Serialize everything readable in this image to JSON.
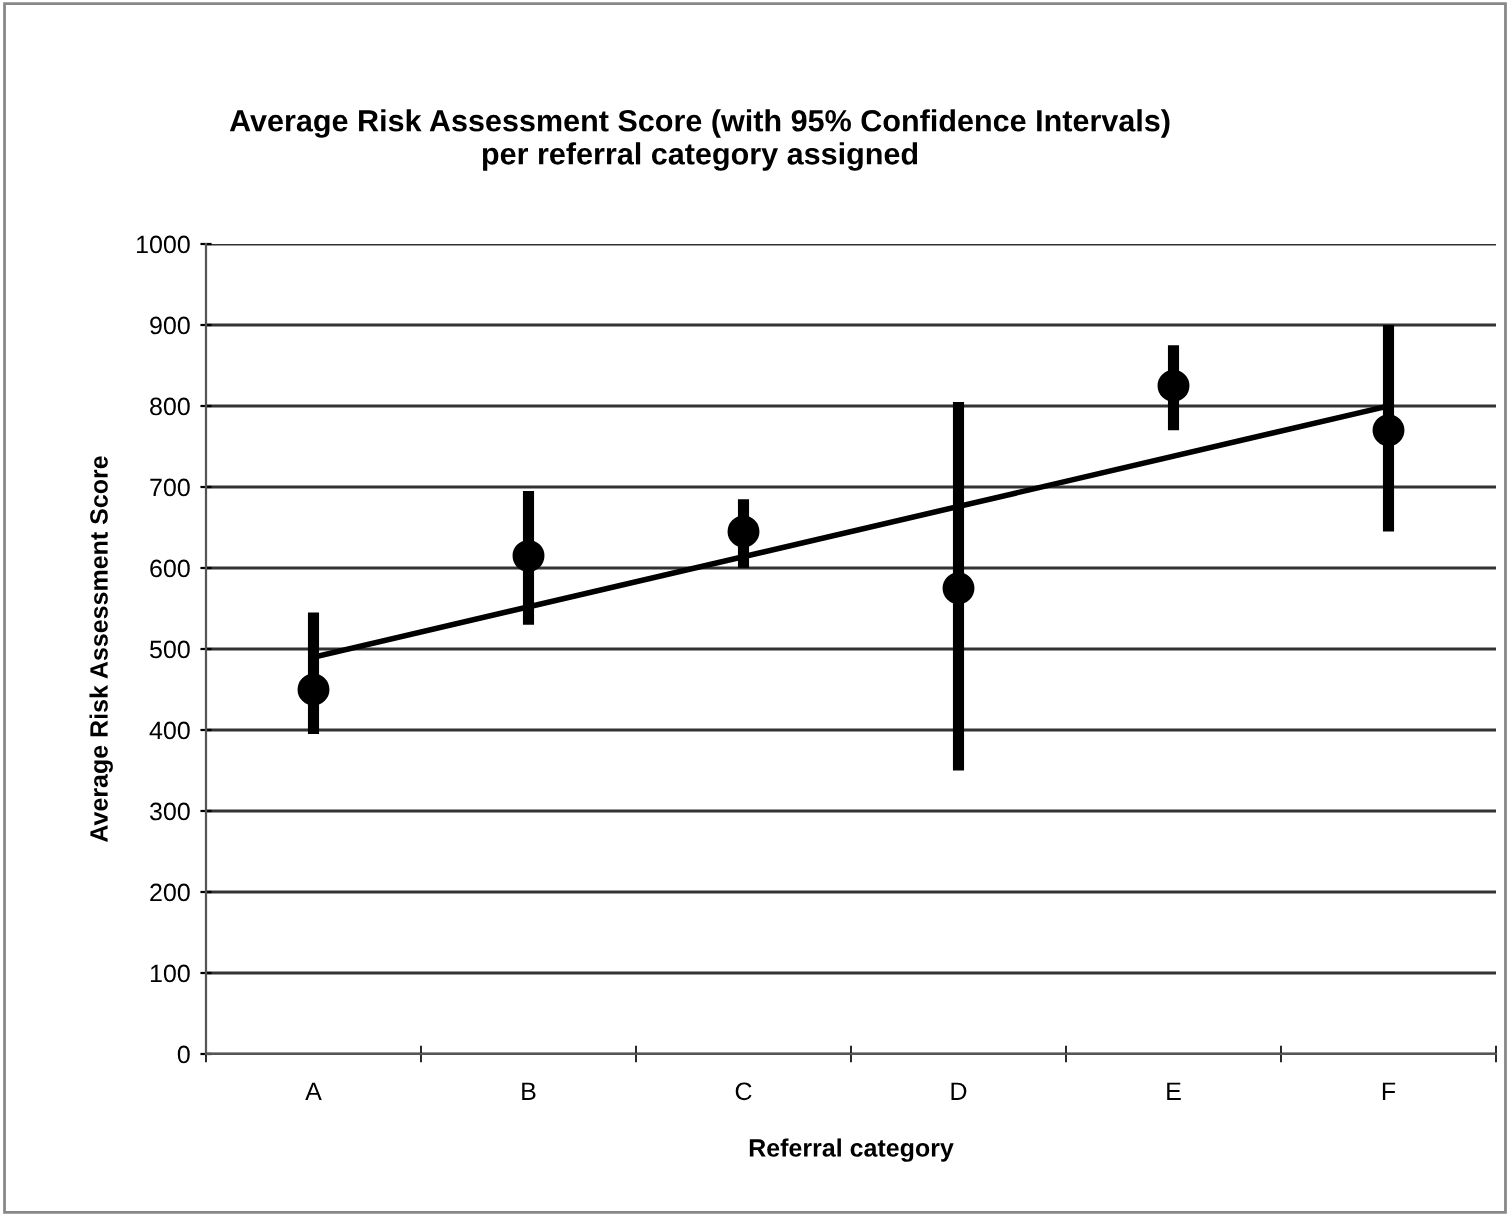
{
  "chart_data": {
    "type": "scatter",
    "title": "Average Risk Assessment Score (with 95% Confidence Intervals)\nper referral category assigned",
    "xlabel": "Referral category",
    "ylabel": "Average Risk Assessment Score",
    "categories": [
      "A",
      "B",
      "C",
      "D",
      "E",
      "F"
    ],
    "series": [
      {
        "color": "#000000",
        "values": [
          450,
          615,
          645,
          575,
          825,
          770
        ],
        "errors": [
          [
            395,
            545
          ],
          [
            530,
            695
          ],
          [
            600,
            685
          ],
          [
            350,
            805
          ],
          [
            770,
            875
          ],
          [
            645,
            900
          ]
        ],
        "marker": "circle"
      },
      {
        "type": "line",
        "color": "#000000",
        "x": [
          "A",
          "F"
        ],
        "values": [
          490,
          800
        ],
        "marker": "none",
        "line_style": "solid"
      }
    ],
    "ylim": [
      0,
      1000
    ],
    "yticks": [
      0,
      100,
      200,
      300,
      400,
      500,
      600,
      700,
      800,
      900,
      1000
    ],
    "grid": "y",
    "legend": false
  }
}
